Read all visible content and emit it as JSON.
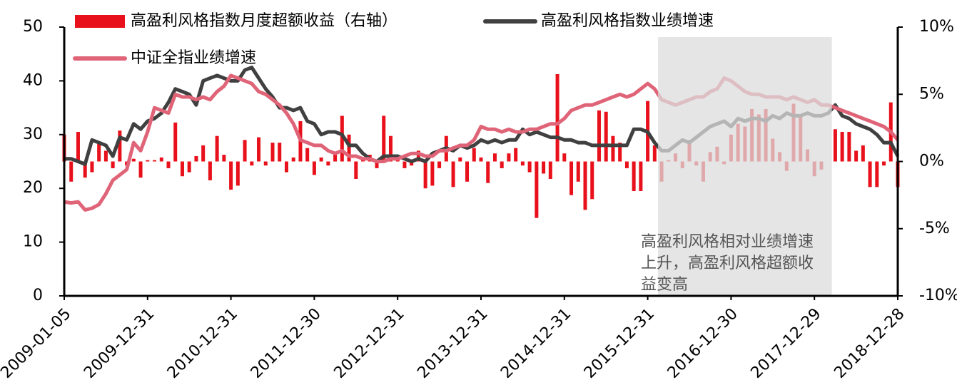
{
  "chart_data": {
    "type": "bar",
    "categories": [
      "2009-01-05",
      null,
      null,
      null,
      null,
      null,
      null,
      null,
      null,
      null,
      null,
      null,
      "2009-12-31",
      null,
      null,
      null,
      null,
      null,
      null,
      null,
      null,
      null,
      null,
      null,
      "2010-12-31",
      null,
      null,
      null,
      null,
      null,
      null,
      null,
      null,
      null,
      null,
      null,
      "2011-12-30",
      null,
      null,
      null,
      null,
      null,
      null,
      null,
      null,
      null,
      null,
      null,
      "2012-12-31",
      null,
      null,
      null,
      null,
      null,
      null,
      null,
      null,
      null,
      null,
      null,
      "2013-12-31",
      null,
      null,
      null,
      null,
      null,
      null,
      null,
      null,
      null,
      null,
      null,
      "2014-12-31",
      null,
      null,
      null,
      null,
      null,
      null,
      null,
      null,
      null,
      null,
      null,
      "2015-12-31",
      null,
      null,
      null,
      null,
      null,
      null,
      null,
      null,
      null,
      null,
      null,
      "2016-12-30",
      null,
      null,
      null,
      null,
      null,
      null,
      null,
      null,
      null,
      null,
      null,
      "2017-12-29",
      null,
      null,
      null,
      null,
      null,
      null,
      null,
      null,
      null,
      null,
      null,
      "2018-12-28"
    ],
    "series": [
      {
        "name": "高盈利风格指数月度超额收益（右轴）",
        "type": "bar",
        "axis": "y2",
        "color": "#e8101a",
        "values": [
          2,
          -1.5,
          2.2,
          -1.2,
          -0.8,
          1.5,
          0.8,
          -0.5,
          2.3,
          -0.3,
          0.2,
          -1.2,
          0.1,
          0.1,
          0.3,
          -0.5,
          2.9,
          -1.1,
          -0.8,
          0.4,
          1.2,
          -1.4,
          1.9,
          0.5,
          -2.1,
          -1.8,
          1.6,
          -0.3,
          1.8,
          -0.3,
          1.4,
          1.4,
          -0.8,
          0.3,
          3.0,
          1.0,
          -1.0,
          0.3,
          -0.3,
          0.5,
          3.4,
          2.0,
          -1.3,
          0.3,
          0.5,
          -0.5,
          3.4,
          1.9,
          0.5,
          -0.5,
          -0.3,
          0.8,
          -2.0,
          -1.8,
          -0.5,
          1.9,
          -1.9,
          0.3,
          -1.5,
          1.0,
          0.3,
          -1.6,
          0.6,
          -0.5,
          0.6,
          1.0,
          -0.3,
          -0.8,
          -4.2,
          -0.9,
          -1.3,
          6.5,
          0.6,
          -2.5,
          -1.5,
          -3.6,
          -2.8,
          3.8,
          3.7,
          1.9,
          1.4,
          -0.5,
          -2.2,
          -2.2,
          4.5,
          1.2,
          -1.5,
          0.1,
          0.6,
          -0.5,
          1.6,
          -0.3,
          -1.5,
          0.7,
          1.1,
          -0.2,
          2.0,
          2.8,
          2.6,
          3.9,
          3.5,
          3.9,
          1.7,
          0.7,
          -0.7,
          4.3,
          3.5,
          0.9,
          -1.1,
          -0.6,
          0.0,
          2.4,
          2.2,
          2.2,
          0.8,
          1.2,
          -1.9,
          -1.9,
          -0.3,
          4.4,
          -1.9
        ]
      },
      {
        "name": "高盈利风格指数业绩增速",
        "type": "line",
        "color": "#404040",
        "values": [
          25.5,
          25.5,
          25,
          24.5,
          29,
          28.5,
          28,
          26,
          29.5,
          29,
          32,
          31,
          32.5,
          33,
          34,
          36,
          38.5,
          38,
          37.5,
          35.5,
          40,
          40.5,
          41,
          40.5,
          40,
          40,
          42,
          42.5,
          40.5,
          38.5,
          37,
          35,
          35,
          34.5,
          35,
          32.5,
          32,
          30,
          30.5,
          30.5,
          30,
          28,
          28,
          26.5,
          25.5,
          25,
          26,
          26,
          26,
          25.5,
          25,
          25.5,
          25,
          26.5,
          27,
          27.5,
          27,
          28,
          27.5,
          28,
          29,
          28.5,
          29,
          28.5,
          29,
          29,
          31,
          30,
          30.5,
          30,
          29.5,
          29.5,
          29,
          29,
          28.5,
          28.5,
          28,
          28,
          28,
          28,
          28,
          28,
          31,
          31,
          30.5,
          28.5,
          27,
          27,
          28,
          29,
          28.5,
          29.5,
          30.5,
          31.5,
          32,
          32.5,
          31.5,
          33,
          32.5,
          33,
          33,
          32.5,
          33.5,
          33,
          34,
          33.5,
          33.5,
          34,
          33.5,
          33.5,
          34,
          35.5,
          33.5,
          33,
          32,
          31.5,
          31,
          30,
          28.5,
          28.5,
          26
        ]
      },
      {
        "name": "中证全指业绩增速",
        "type": "line",
        "color": "#e06478",
        "values": [
          17.5,
          17.3,
          17.5,
          16,
          16.3,
          17,
          19,
          21.5,
          22.5,
          23.5,
          28.5,
          27,
          30.5,
          35,
          34.5,
          34,
          37.5,
          37,
          37,
          36.5,
          37,
          36.5,
          38,
          39,
          41,
          40.5,
          40,
          39.5,
          38,
          37.5,
          36.5,
          35.5,
          34,
          32,
          29,
          28.5,
          28,
          28,
          27,
          26.5,
          27,
          26,
          26,
          25.5,
          25.5,
          25,
          25,
          25.5,
          25.5,
          26,
          26.5,
          26.5,
          26,
          26,
          27,
          27,
          27.5,
          28,
          28,
          29,
          31.5,
          31,
          31,
          30.5,
          31,
          30.5,
          30.5,
          31,
          31,
          31.5,
          32,
          32,
          33,
          34.5,
          35,
          35.5,
          35.5,
          36,
          36.5,
          37,
          37.5,
          37,
          37.5,
          38.5,
          39.5,
          38.5,
          36.5,
          36,
          35.5,
          36,
          36.5,
          37,
          37,
          38,
          38.5,
          40.5,
          40,
          39,
          38,
          37.5,
          37.5,
          37,
          37,
          37,
          36.5,
          37,
          36.5,
          36,
          36.5,
          35.5,
          35.5,
          35,
          34.5,
          34,
          33.5,
          33,
          32.5,
          32,
          31.5,
          30.5,
          29
        ]
      }
    ],
    "ylim": [
      0,
      50
    ],
    "yticks": [
      0,
      10,
      20,
      30,
      40,
      50
    ],
    "y2lim": [
      -10,
      10
    ],
    "y2ticks": [
      {
        "value": -10,
        "label": "-10%"
      },
      {
        "value": -5,
        "label": "-5%"
      },
      {
        "value": 0,
        "label": "0%"
      },
      {
        "value": 5,
        "label": "5%"
      },
      {
        "value": 10,
        "label": "10%"
      }
    ],
    "shaded_range": [
      86,
      110
    ],
    "annotation": [
      "高盈利风格相对业绩增速",
      "上升，高盈利风格超额收",
      "益变高"
    ]
  }
}
